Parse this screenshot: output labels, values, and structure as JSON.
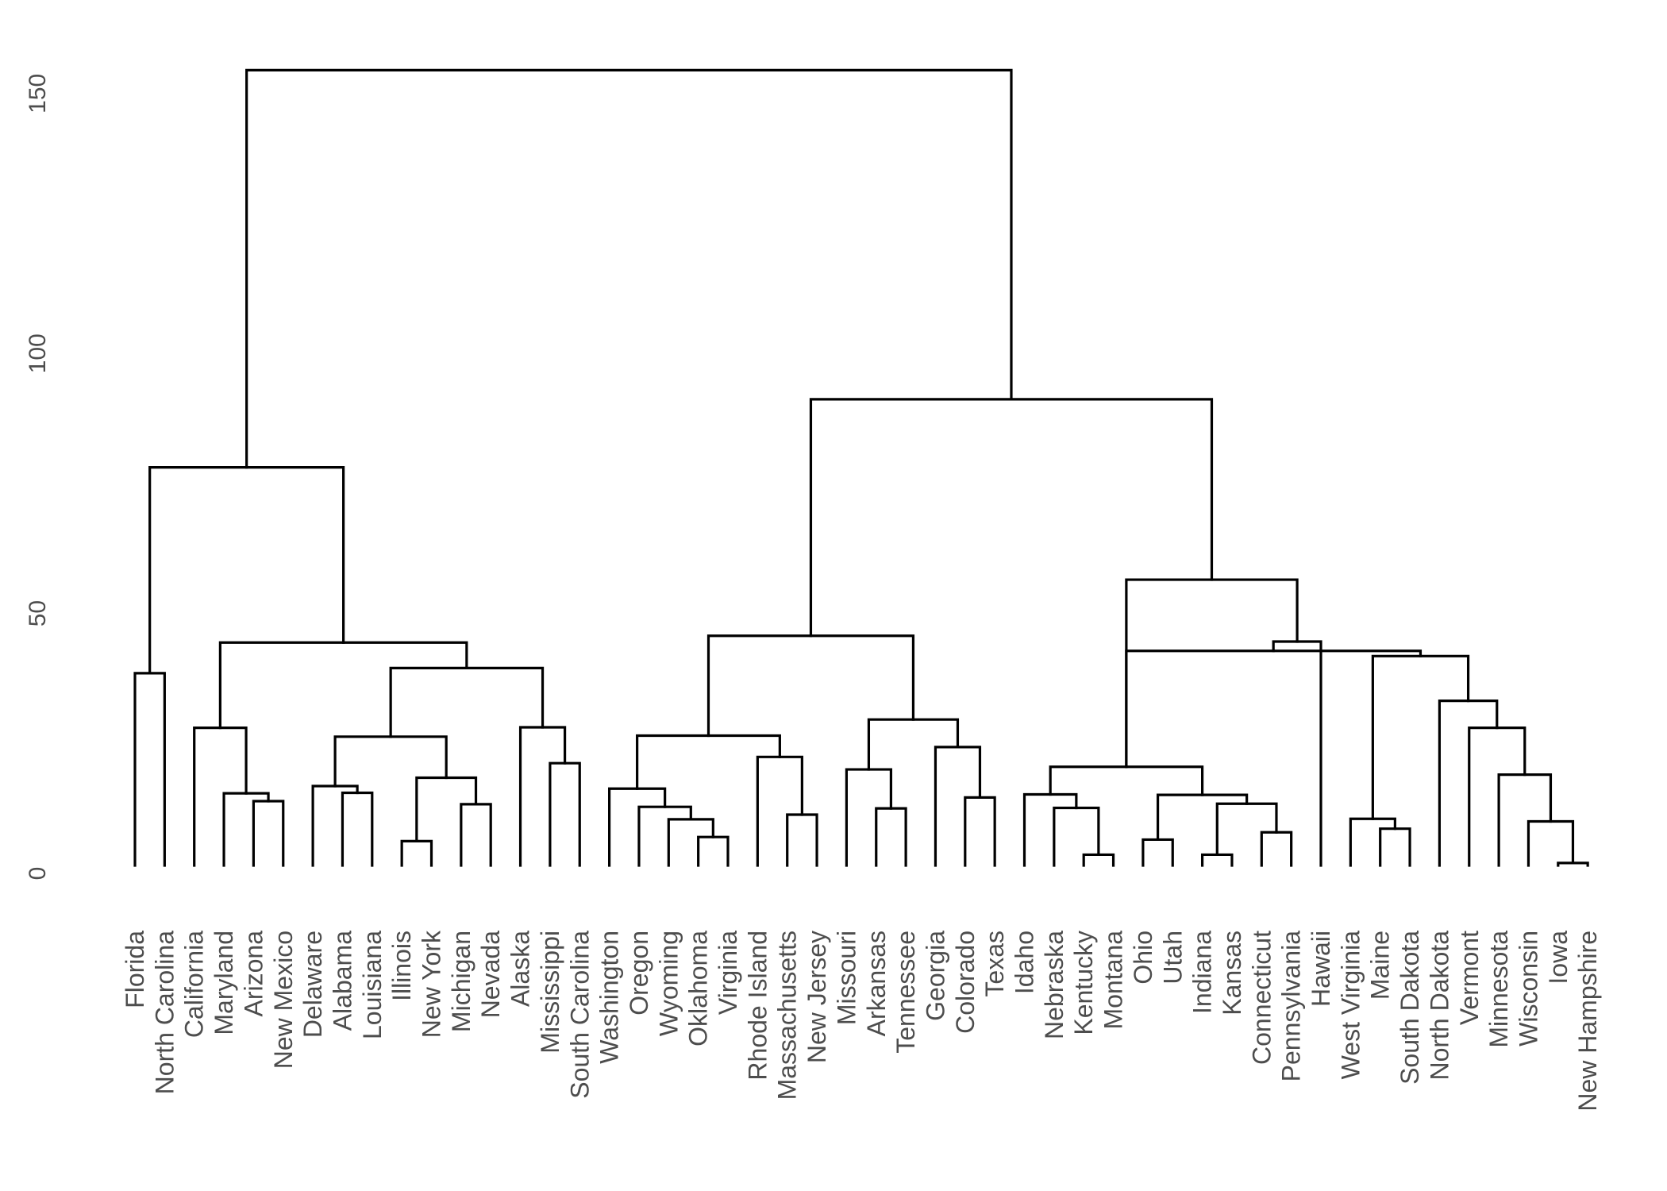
{
  "chart_data": {
    "type": "dendrogram",
    "title": "",
    "xlabel": "",
    "ylabel": "",
    "ylim": [
      0,
      157
    ],
    "y_ticks": [
      0,
      50,
      100,
      150
    ],
    "grid": false,
    "colors": {
      "branch": "#000000",
      "text": "#4d4d4d",
      "background": "#ffffff"
    },
    "leaves": [
      "Florida",
      "North Carolina",
      "California",
      "Maryland",
      "Arizona",
      "New Mexico",
      "Delaware",
      "Alabama",
      "Louisiana",
      "Illinois",
      "New York",
      "Michigan",
      "Nevada",
      "Alaska",
      "Mississippi",
      "South Carolina",
      "Washington",
      "Oregon",
      "Wyoming",
      "Oklahoma",
      "Virginia",
      "Rhode Island",
      "Massachusetts",
      "New Jersey",
      "Missouri",
      "Arkansas",
      "Tennessee",
      "Georgia",
      "Colorado",
      "Texas",
      "Idaho",
      "Nebraska",
      "Kentucky",
      "Montana",
      "Ohio",
      "Utah",
      "Indiana",
      "Kansas",
      "Connecticut",
      "Pennsylvania",
      "Hawaii",
      "West Virginia",
      "Maine",
      "South Dakota",
      "North Dakota",
      "Vermont",
      "Minnesota",
      "Wisconsin",
      "Iowa",
      "New Hampshire"
    ],
    "merges": [
      {
        "a": "Florida",
        "b": "North Carolina",
        "height": 38.5
      },
      {
        "a": "Arizona",
        "b": "New Mexico",
        "height": 13.9
      },
      {
        "a": "Maryland",
        "b": "m2",
        "height": 15.4
      },
      {
        "a": "California",
        "b": "m3",
        "height": 28.0
      },
      {
        "a": "Alabama",
        "b": "Louisiana",
        "height": 15.5
      },
      {
        "a": "Delaware",
        "b": "m5",
        "height": 16.8
      },
      {
        "a": "Illinois",
        "b": "New York",
        "height": 6.2
      },
      {
        "a": "Michigan",
        "b": "Nevada",
        "height": 13.3
      },
      {
        "a": "m7",
        "b": "m8",
        "height": 18.4
      },
      {
        "a": "m6",
        "b": "m9",
        "height": 26.3
      },
      {
        "a": "Mississippi",
        "b": "South Carolina",
        "height": 21.2
      },
      {
        "a": "Alaska",
        "b": "m11",
        "height": 28.1
      },
      {
        "a": "m10",
        "b": "m12",
        "height": 39.5
      },
      {
        "a": "m4",
        "b": "m13",
        "height": 44.4
      },
      {
        "a": "m1",
        "b": "m14",
        "height": 78.1
      },
      {
        "a": "Oklahoma",
        "b": "Virginia",
        "height": 7.0
      },
      {
        "a": "Wyoming",
        "b": "m16",
        "height": 10.4
      },
      {
        "a": "Oregon",
        "b": "m17",
        "height": 12.8
      },
      {
        "a": "Washington",
        "b": "m18",
        "height": 16.3
      },
      {
        "a": "Massachusetts",
        "b": "New Jersey",
        "height": 11.3
      },
      {
        "a": "Rhode Island",
        "b": "m20",
        "height": 22.4
      },
      {
        "a": "m19",
        "b": "m21",
        "height": 26.5
      },
      {
        "a": "Arkansas",
        "b": "Tennessee",
        "height": 12.5
      },
      {
        "a": "Missouri",
        "b": "m23",
        "height": 20.0
      },
      {
        "a": "Colorado",
        "b": "Texas",
        "height": 14.6
      },
      {
        "a": "Georgia",
        "b": "m25",
        "height": 24.3
      },
      {
        "a": "m24",
        "b": "m26",
        "height": 29.6
      },
      {
        "a": "m22",
        "b": "m27",
        "height": 45.7
      },
      {
        "a": "Kentucky",
        "b": "Montana",
        "height": 3.6
      },
      {
        "a": "Nebraska",
        "b": "m29",
        "height": 12.6
      },
      {
        "a": "Idaho",
        "b": "m30",
        "height": 15.2
      },
      {
        "a": "Ohio",
        "b": "Utah",
        "height": 6.5
      },
      {
        "a": "Indiana",
        "b": "Kansas",
        "height": 3.6
      },
      {
        "a": "Connecticut",
        "b": "Pennsylvania",
        "height": 7.9
      },
      {
        "a": "m33",
        "b": "m34",
        "height": 13.4
      },
      {
        "a": "m32",
        "b": "m35",
        "height": 15.1
      },
      {
        "a": "m31",
        "b": "m36",
        "height": 20.5
      },
      {
        "a": "Maine",
        "b": "South Dakota",
        "height": 8.6
      },
      {
        "a": "West Virginia",
        "b": "m38",
        "height": 10.5
      },
      {
        "a": "Iowa",
        "b": "New Hampshire",
        "height": 2.0
      },
      {
        "a": "Wisconsin",
        "b": "m40",
        "height": 10.0
      },
      {
        "a": "Minnesota",
        "b": "m41",
        "height": 19.0
      },
      {
        "a": "Vermont",
        "b": "m42",
        "height": 28.0
      },
      {
        "a": "North Dakota",
        "b": "m43",
        "height": 33.2
      },
      {
        "a": "m39",
        "b": "m44",
        "height": 41.8
      },
      {
        "a": "m37",
        "b": "m45",
        "height": 42.8
      },
      {
        "a": "Hawaii",
        "b": "m46",
        "height": 44.6
      },
      {
        "a": "m47",
        "b": "m48",
        "height": 47.2
      }
    ],
    "root_merges": [
      {
        "id": "m48",
        "a": "m37",
        "b": "m47",
        "height": 56.5
      },
      {
        "id": "m49",
        "a": "m28",
        "b": "m48",
        "height": 91.2
      },
      {
        "id": "m50",
        "a": "m15",
        "b": "m49",
        "height": 154.5
      }
    ]
  }
}
